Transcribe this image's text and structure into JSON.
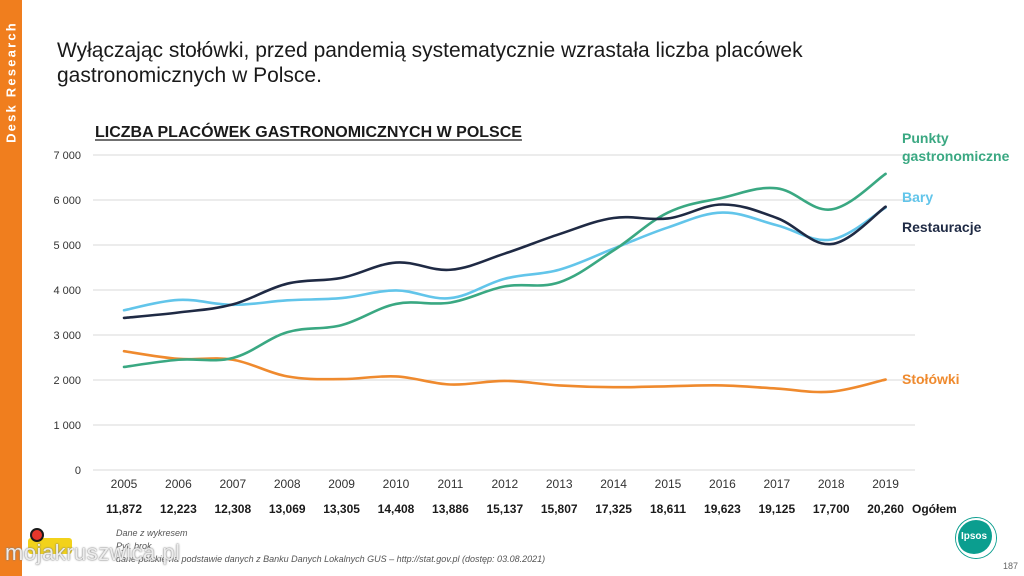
{
  "sidebar": {
    "label": "Desk Research"
  },
  "headline": "Wyłączając stołówki, przed pandemią systematycznie wzrastała liczba placówek gastronomicznych w Polsce.",
  "chart_data": {
    "type": "line",
    "title": "LICZBA PLACÓWEK GASTRONOMICZNYCH W POLSCE",
    "xlabel": "",
    "ylabel": "",
    "ylim": [
      0,
      7000
    ],
    "yticks": [
      0,
      1000,
      2000,
      3000,
      4000,
      5000,
      6000,
      7000
    ],
    "ytick_labels": [
      "0",
      "1 000",
      "2 000",
      "3 000",
      "4 000",
      "5 000",
      "6 000",
      "7 000"
    ],
    "grid": true,
    "legend": "right, labels at line ends",
    "categories": [
      "2005",
      "2006",
      "2007",
      "2008",
      "2009",
      "2010",
      "2011",
      "2012",
      "2013",
      "2014",
      "2015",
      "2016",
      "2017",
      "2018",
      "2019"
    ],
    "series": [
      {
        "name": "Punkty gastronomiczne",
        "label_lines": [
          "Punkty",
          "gastronomiczne"
        ],
        "color": "#3aa882",
        "values": [
          2290,
          2450,
          2490,
          3060,
          3220,
          3690,
          3720,
          4080,
          4170,
          4880,
          5720,
          6050,
          6260,
          5790,
          6580
        ]
      },
      {
        "name": "Bary",
        "label_lines": [
          "Bary"
        ],
        "color": "#62c5ea",
        "values": [
          3550,
          3780,
          3670,
          3770,
          3820,
          3990,
          3820,
          4250,
          4450,
          4920,
          5390,
          5720,
          5440,
          5120,
          5830
        ]
      },
      {
        "name": "Restauracje",
        "label_lines": [
          "Restauracje"
        ],
        "color": "#1f2a44",
        "values": [
          3380,
          3500,
          3680,
          4140,
          4270,
          4610,
          4450,
          4810,
          5240,
          5600,
          5590,
          5900,
          5600,
          5020,
          5850
        ]
      },
      {
        "name": "Stołówki",
        "label_lines": [
          "Stołówki"
        ],
        "color": "#ef8a2e",
        "values": [
          2640,
          2470,
          2450,
          2080,
          2020,
          2080,
          1900,
          1980,
          1880,
          1840,
          1860,
          1880,
          1810,
          1740,
          2010
        ]
      }
    ],
    "totals": {
      "label": "Ogółem",
      "values": [
        "11,872",
        "12,223",
        "12,308",
        "13,069",
        "13,305",
        "14,408",
        "13,886",
        "15,137",
        "15,807",
        "17,325",
        "18,611",
        "19,623",
        "19,125",
        "17,700",
        "20,260"
      ]
    }
  },
  "footnotes": {
    "line1": "Dane z wykresem",
    "line2": "Pyt. brok",
    "line3": "dane polskie na podstawie danych z Banku Danych Lokalnych GUS – http://stat.gov.pl (dostęp: 03.08.2021)"
  },
  "logo": {
    "text": "Ipsos",
    "color": "#0b9e8f"
  },
  "page_number": "187",
  "watermark": "mojakruszwica.pl"
}
